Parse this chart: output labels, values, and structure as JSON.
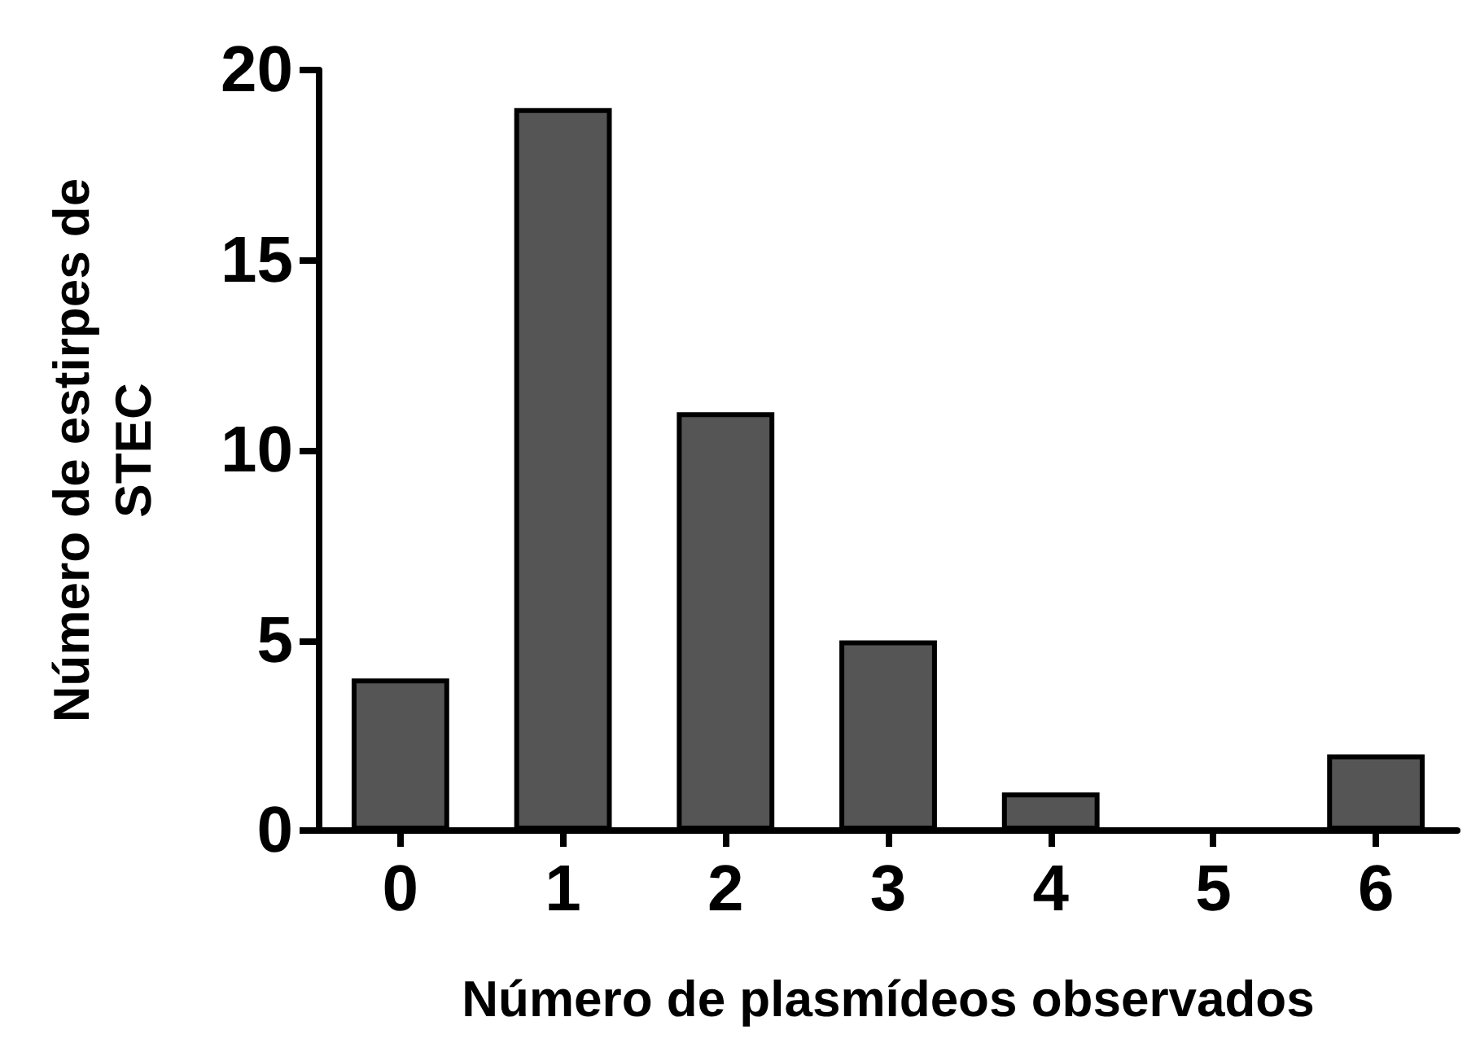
{
  "chart_data": {
    "type": "bar",
    "xlabel": "Número de plasmídeos observados",
    "ylabel": "Número de estirpes de\nSTEC",
    "categories": [
      "0",
      "1",
      "2",
      "3",
      "4",
      "5",
      "6"
    ],
    "values": [
      4,
      19,
      11,
      5,
      1,
      0,
      2
    ],
    "color": "#555555",
    "ylim": [
      0,
      20
    ],
    "yticks": [
      0,
      5,
      10,
      15,
      20
    ],
    "grid": false
  }
}
